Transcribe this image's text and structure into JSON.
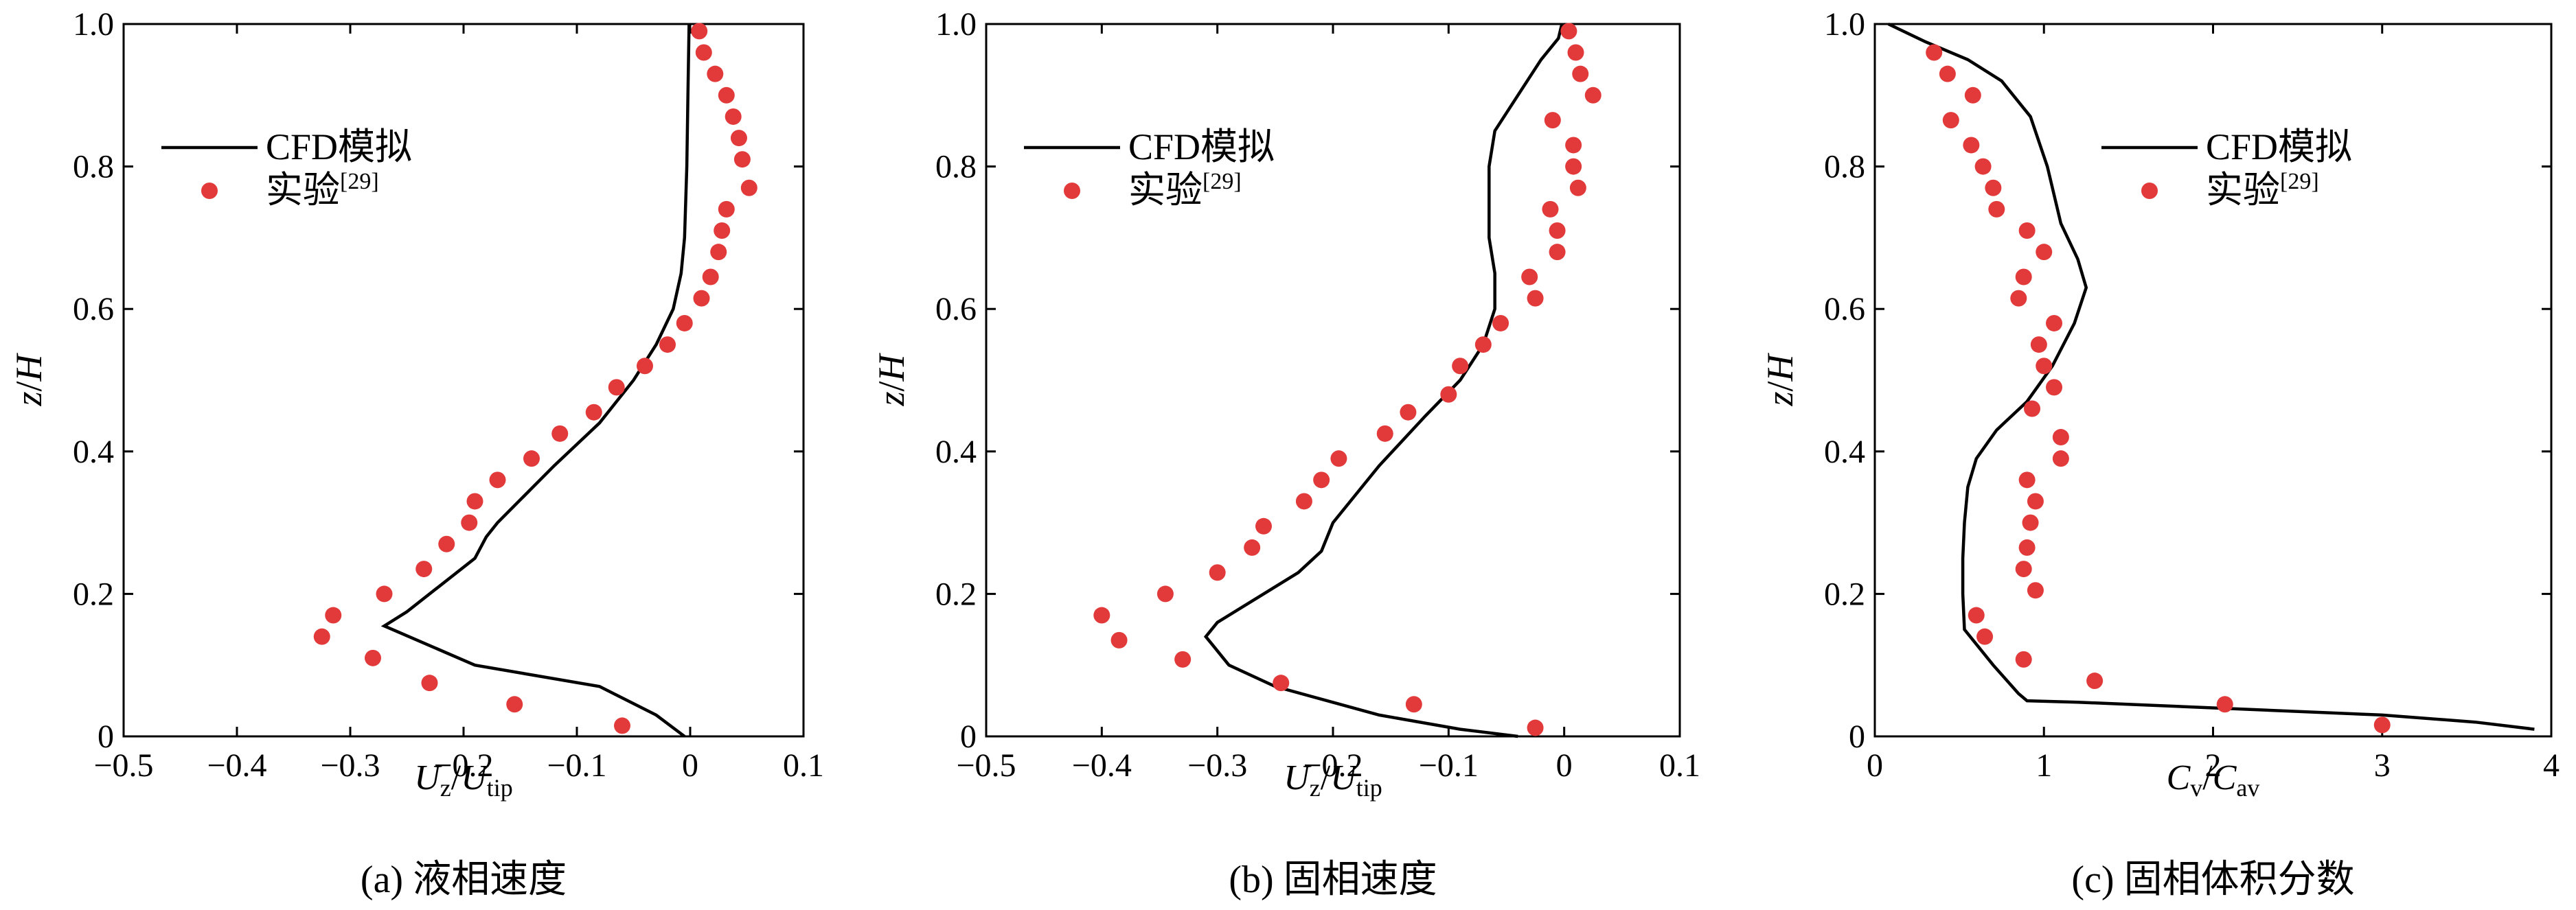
{
  "chart_data": [
    {
      "type": "line",
      "caption": "(a) 液相速度",
      "xlabel": {
        "main": "U",
        "sub1": "z",
        "mid": "/U",
        "sub2": "tip"
      },
      "ylabel": {
        "italic": "z",
        "rest": "/",
        "italic2": "H"
      },
      "xlim": [
        -0.5,
        0.1
      ],
      "ylim": [
        0,
        1.0
      ],
      "xticks": [
        -0.5,
        -0.4,
        -0.3,
        -0.2,
        -0.1,
        0,
        0.1
      ],
      "xtick_labels": [
        "−0.5",
        "−0.4",
        "−0.3",
        "−0.2",
        "−0.1",
        "0",
        "0.1"
      ],
      "yticks": [
        0,
        0.2,
        0.4,
        0.6,
        0.8,
        1.0
      ],
      "ytick_labels": [
        "0",
        "0.2",
        "0.4",
        "0.6",
        "0.8",
        "1.0"
      ],
      "legend": {
        "position": "upper-left",
        "line_label": "CFD模拟",
        "dot_label": "实验",
        "dot_ref": "[29]"
      },
      "series": [
        {
          "name": "CFD模拟",
          "kind": "line",
          "points": [
            [
              -0.005,
              0.0
            ],
            [
              -0.03,
              0.03
            ],
            [
              -0.08,
              0.07
            ],
            [
              -0.19,
              0.1
            ],
            [
              -0.27,
              0.155
            ],
            [
              -0.25,
              0.175
            ],
            [
              -0.19,
              0.25
            ],
            [
              -0.18,
              0.28
            ],
            [
              -0.17,
              0.3
            ],
            [
              -0.12,
              0.38
            ],
            [
              -0.08,
              0.44
            ],
            [
              -0.05,
              0.5
            ],
            [
              -0.03,
              0.55
            ],
            [
              -0.015,
              0.6
            ],
            [
              -0.008,
              0.65
            ],
            [
              -0.005,
              0.7
            ],
            [
              -0.003,
              0.8
            ],
            [
              -0.002,
              0.9
            ],
            [
              -0.001,
              1.0
            ]
          ]
        },
        {
          "name": "实验[29]",
          "kind": "scatter",
          "points": [
            [
              0.008,
              0.99
            ],
            [
              0.012,
              0.96
            ],
            [
              0.022,
              0.93
            ],
            [
              0.032,
              0.9
            ],
            [
              0.038,
              0.87
            ],
            [
              0.043,
              0.84
            ],
            [
              0.046,
              0.81
            ],
            [
              0.052,
              0.77
            ],
            [
              0.032,
              0.74
            ],
            [
              0.028,
              0.71
            ],
            [
              0.025,
              0.68
            ],
            [
              0.018,
              0.645
            ],
            [
              0.01,
              0.615
            ],
            [
              -0.005,
              0.58
            ],
            [
              -0.02,
              0.55
            ],
            [
              -0.04,
              0.52
            ],
            [
              -0.065,
              0.49
            ],
            [
              -0.085,
              0.455
            ],
            [
              -0.115,
              0.425
            ],
            [
              -0.14,
              0.39
            ],
            [
              -0.17,
              0.36
            ],
            [
              -0.19,
              0.33
            ],
            [
              -0.195,
              0.3
            ],
            [
              -0.215,
              0.27
            ],
            [
              -0.235,
              0.235
            ],
            [
              -0.27,
              0.2
            ],
            [
              -0.315,
              0.17
            ],
            [
              -0.325,
              0.14
            ],
            [
              -0.28,
              0.11
            ],
            [
              -0.23,
              0.075
            ],
            [
              -0.155,
              0.045
            ],
            [
              -0.06,
              0.015
            ]
          ]
        }
      ]
    },
    {
      "type": "line",
      "caption": "(b) 固相速度",
      "xlabel": {
        "main": "U",
        "sub1": "z",
        "mid": "/U",
        "sub2": "tip"
      },
      "ylabel": {
        "italic": "z",
        "rest": "/",
        "italic2": "H"
      },
      "xlim": [
        -0.5,
        0.1
      ],
      "ylim": [
        0,
        1.0
      ],
      "xticks": [
        -0.5,
        -0.4,
        -0.3,
        -0.2,
        -0.1,
        0,
        0.1
      ],
      "xtick_labels": [
        "−0.5",
        "−0.4",
        "−0.3",
        "−0.2",
        "−0.1",
        "0",
        "0.1"
      ],
      "yticks": [
        0,
        0.2,
        0.4,
        0.6,
        0.8,
        1.0
      ],
      "ytick_labels": [
        "0",
        "0.2",
        "0.4",
        "0.6",
        "0.8",
        "1.0"
      ],
      "legend": {
        "position": "upper-left",
        "line_label": "CFD模拟",
        "dot_label": "实验",
        "dot_ref": "[29]"
      },
      "series": [
        {
          "name": "CFD模拟",
          "kind": "line",
          "points": [
            [
              -0.04,
              0.0
            ],
            [
              -0.09,
              0.01
            ],
            [
              -0.16,
              0.03
            ],
            [
              -0.25,
              0.07
            ],
            [
              -0.29,
              0.1
            ],
            [
              -0.305,
              0.13
            ],
            [
              -0.31,
              0.14
            ],
            [
              -0.3,
              0.16
            ],
            [
              -0.26,
              0.2
            ],
            [
              -0.23,
              0.23
            ],
            [
              -0.21,
              0.26
            ],
            [
              -0.2,
              0.3
            ],
            [
              -0.16,
              0.38
            ],
            [
              -0.12,
              0.45
            ],
            [
              -0.09,
              0.5
            ],
            [
              -0.07,
              0.55
            ],
            [
              -0.06,
              0.6
            ],
            [
              -0.06,
              0.65
            ],
            [
              -0.065,
              0.7
            ],
            [
              -0.065,
              0.8
            ],
            [
              -0.06,
              0.85
            ],
            [
              -0.04,
              0.9
            ],
            [
              -0.02,
              0.95
            ],
            [
              -0.005,
              0.98
            ],
            [
              -0.002,
              1.0
            ]
          ]
        },
        {
          "name": "实验[29]",
          "kind": "scatter",
          "points": [
            [
              0.004,
              0.99
            ],
            [
              0.01,
              0.96
            ],
            [
              0.014,
              0.93
            ],
            [
              0.025,
              0.9
            ],
            [
              -0.01,
              0.865
            ],
            [
              0.008,
              0.83
            ],
            [
              0.008,
              0.8
            ],
            [
              0.012,
              0.77
            ],
            [
              -0.012,
              0.74
            ],
            [
              -0.006,
              0.71
            ],
            [
              -0.006,
              0.68
            ],
            [
              -0.03,
              0.645
            ],
            [
              -0.025,
              0.615
            ],
            [
              -0.055,
              0.58
            ],
            [
              -0.07,
              0.55
            ],
            [
              -0.09,
              0.52
            ],
            [
              -0.1,
              0.48
            ],
            [
              -0.135,
              0.455
            ],
            [
              -0.155,
              0.425
            ],
            [
              -0.195,
              0.39
            ],
            [
              -0.21,
              0.36
            ],
            [
              -0.225,
              0.33
            ],
            [
              -0.26,
              0.295
            ],
            [
              -0.27,
              0.265
            ],
            [
              -0.3,
              0.23
            ],
            [
              -0.345,
              0.2
            ],
            [
              -0.4,
              0.17
            ],
            [
              -0.385,
              0.135
            ],
            [
              -0.33,
              0.108
            ],
            [
              -0.245,
              0.075
            ],
            [
              -0.13,
              0.045
            ],
            [
              -0.025,
              0.012
            ]
          ]
        }
      ]
    },
    {
      "type": "line",
      "caption": "(c) 固相体积分数",
      "xlabel": {
        "main": "C",
        "sub1": "v",
        "mid": "/C",
        "sub2": "av"
      },
      "ylabel": {
        "italic": "z",
        "rest": "/",
        "italic2": "H"
      },
      "xlim": [
        0,
        4
      ],
      "ylim": [
        0,
        1.0
      ],
      "xticks": [
        0,
        1,
        2,
        3,
        4
      ],
      "xtick_labels": [
        "0",
        "1",
        "2",
        "3",
        "4"
      ],
      "yticks": [
        0,
        0.2,
        0.4,
        0.6,
        0.8,
        1.0
      ],
      "ytick_labels": [
        "0",
        "0.2",
        "0.4",
        "0.6",
        "0.8",
        "1.0"
      ],
      "legend": {
        "position": "upper-right",
        "line_label": "CFD模拟",
        "dot_label": "实验",
        "dot_ref": "[29]"
      },
      "series": [
        {
          "name": "CFD模拟",
          "kind": "line",
          "points": [
            [
              0.08,
              1.0
            ],
            [
              0.3,
              0.975
            ],
            [
              0.55,
              0.95
            ],
            [
              0.75,
              0.92
            ],
            [
              0.92,
              0.87
            ],
            [
              1.02,
              0.8
            ],
            [
              1.1,
              0.72
            ],
            [
              1.2,
              0.67
            ],
            [
              1.25,
              0.63
            ],
            [
              1.18,
              0.58
            ],
            [
              1.05,
              0.52
            ],
            [
              0.9,
              0.47
            ],
            [
              0.72,
              0.43
            ],
            [
              0.6,
              0.39
            ],
            [
              0.55,
              0.35
            ],
            [
              0.53,
              0.3
            ],
            [
              0.52,
              0.25
            ],
            [
              0.52,
              0.2
            ],
            [
              0.53,
              0.15
            ],
            [
              0.7,
              0.1
            ],
            [
              0.85,
              0.06
            ],
            [
              0.9,
              0.05
            ],
            [
              1.2,
              0.048
            ],
            [
              2.0,
              0.04
            ],
            [
              3.0,
              0.03
            ],
            [
              3.55,
              0.02
            ],
            [
              3.9,
              0.01
            ]
          ]
        },
        {
          "name": "实验[29]",
          "kind": "scatter",
          "points": [
            [
              0.35,
              0.96
            ],
            [
              0.43,
              0.93
            ],
            [
              0.58,
              0.9
            ],
            [
              0.45,
              0.865
            ],
            [
              0.57,
              0.83
            ],
            [
              0.64,
              0.8
            ],
            [
              0.7,
              0.77
            ],
            [
              0.72,
              0.74
            ],
            [
              0.9,
              0.71
            ],
            [
              1.0,
              0.68
            ],
            [
              0.88,
              0.645
            ],
            [
              0.85,
              0.615
            ],
            [
              1.06,
              0.58
            ],
            [
              0.97,
              0.55
            ],
            [
              1.0,
              0.52
            ],
            [
              1.06,
              0.49
            ],
            [
              0.93,
              0.46
            ],
            [
              1.1,
              0.42
            ],
            [
              1.1,
              0.39
            ],
            [
              0.9,
              0.36
            ],
            [
              0.95,
              0.33
            ],
            [
              0.92,
              0.3
            ],
            [
              0.9,
              0.265
            ],
            [
              0.88,
              0.235
            ],
            [
              0.95,
              0.205
            ],
            [
              0.6,
              0.17
            ],
            [
              0.65,
              0.14
            ],
            [
              0.88,
              0.108
            ],
            [
              1.3,
              0.078
            ],
            [
              2.07,
              0.045
            ],
            [
              3.0,
              0.016
            ]
          ]
        }
      ]
    }
  ],
  "colors": {
    "line": "#000000",
    "dots": "#e23a3a",
    "background": "#ffffff"
  }
}
